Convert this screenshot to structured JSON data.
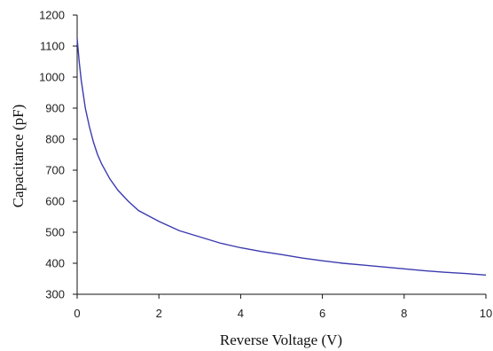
{
  "chart_data": {
    "type": "line",
    "title": "",
    "xlabel": "Reverse Voltage (V)",
    "ylabel": "Capacitance (pF)",
    "xlim": [
      0,
      10
    ],
    "ylim": [
      300,
      1200
    ],
    "xticks": [
      0,
      2,
      4,
      6,
      8,
      10
    ],
    "yticks": [
      300,
      400,
      500,
      600,
      700,
      800,
      900,
      1000,
      1100,
      1200
    ],
    "grid": false,
    "legend": "none",
    "series": [
      {
        "color": "#3b3bb0",
        "x": [
          0,
          0.05,
          0.1,
          0.2,
          0.3,
          0.4,
          0.5,
          0.6,
          0.8,
          1.0,
          1.25,
          1.5,
          2.0,
          2.5,
          3.0,
          3.5,
          4.0,
          4.5,
          5.0,
          5.5,
          6.0,
          6.5,
          7.0,
          7.5,
          8.0,
          8.5,
          9.0,
          9.5,
          10.0
        ],
        "y": [
          1125,
          1050,
          990,
          900,
          840,
          790,
          750,
          720,
          672,
          635,
          600,
          570,
          535,
          505,
          485,
          465,
          450,
          438,
          428,
          417,
          408,
          400,
          394,
          388,
          382,
          376,
          371,
          367,
          362
        ]
      }
    ]
  }
}
